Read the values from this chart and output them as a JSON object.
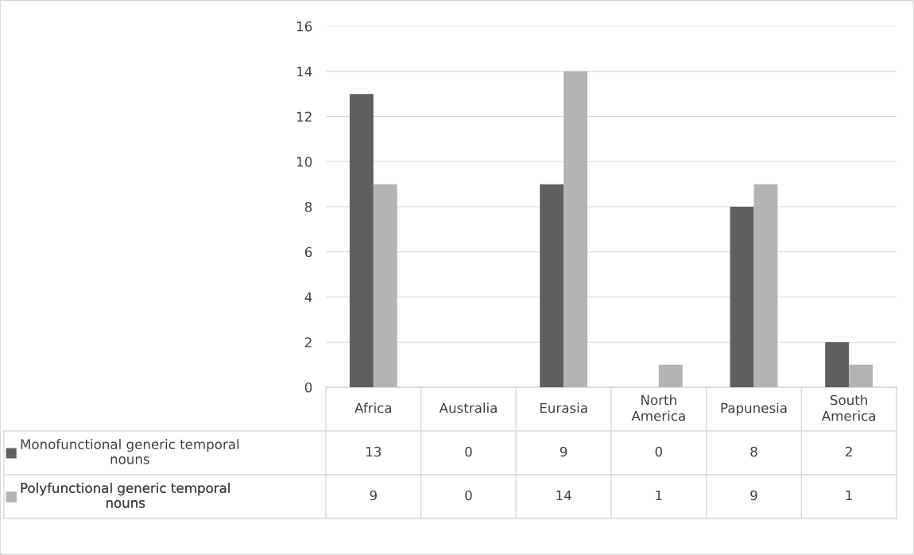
{
  "chart_data": {
    "type": "bar",
    "categories": [
      "Africa",
      "Australia",
      "Eurasia",
      "North America",
      "Papunesia",
      "South America"
    ],
    "series": [
      {
        "name": "Monofunctional generic temporal nouns",
        "color": "#5f5f5f",
        "values": [
          13,
          0,
          9,
          0,
          8,
          2
        ]
      },
      {
        "name": "Polyfunctional generic temporal nouns",
        "color": "#b4b4b4",
        "values": [
          9,
          0,
          14,
          1,
          9,
          1
        ]
      }
    ],
    "ylim": [
      0,
      16
    ],
    "yticks": [
      0,
      2,
      4,
      6,
      8,
      10,
      12,
      14,
      16
    ],
    "grid": "y",
    "legend": "bottom",
    "data_labels": true
  }
}
